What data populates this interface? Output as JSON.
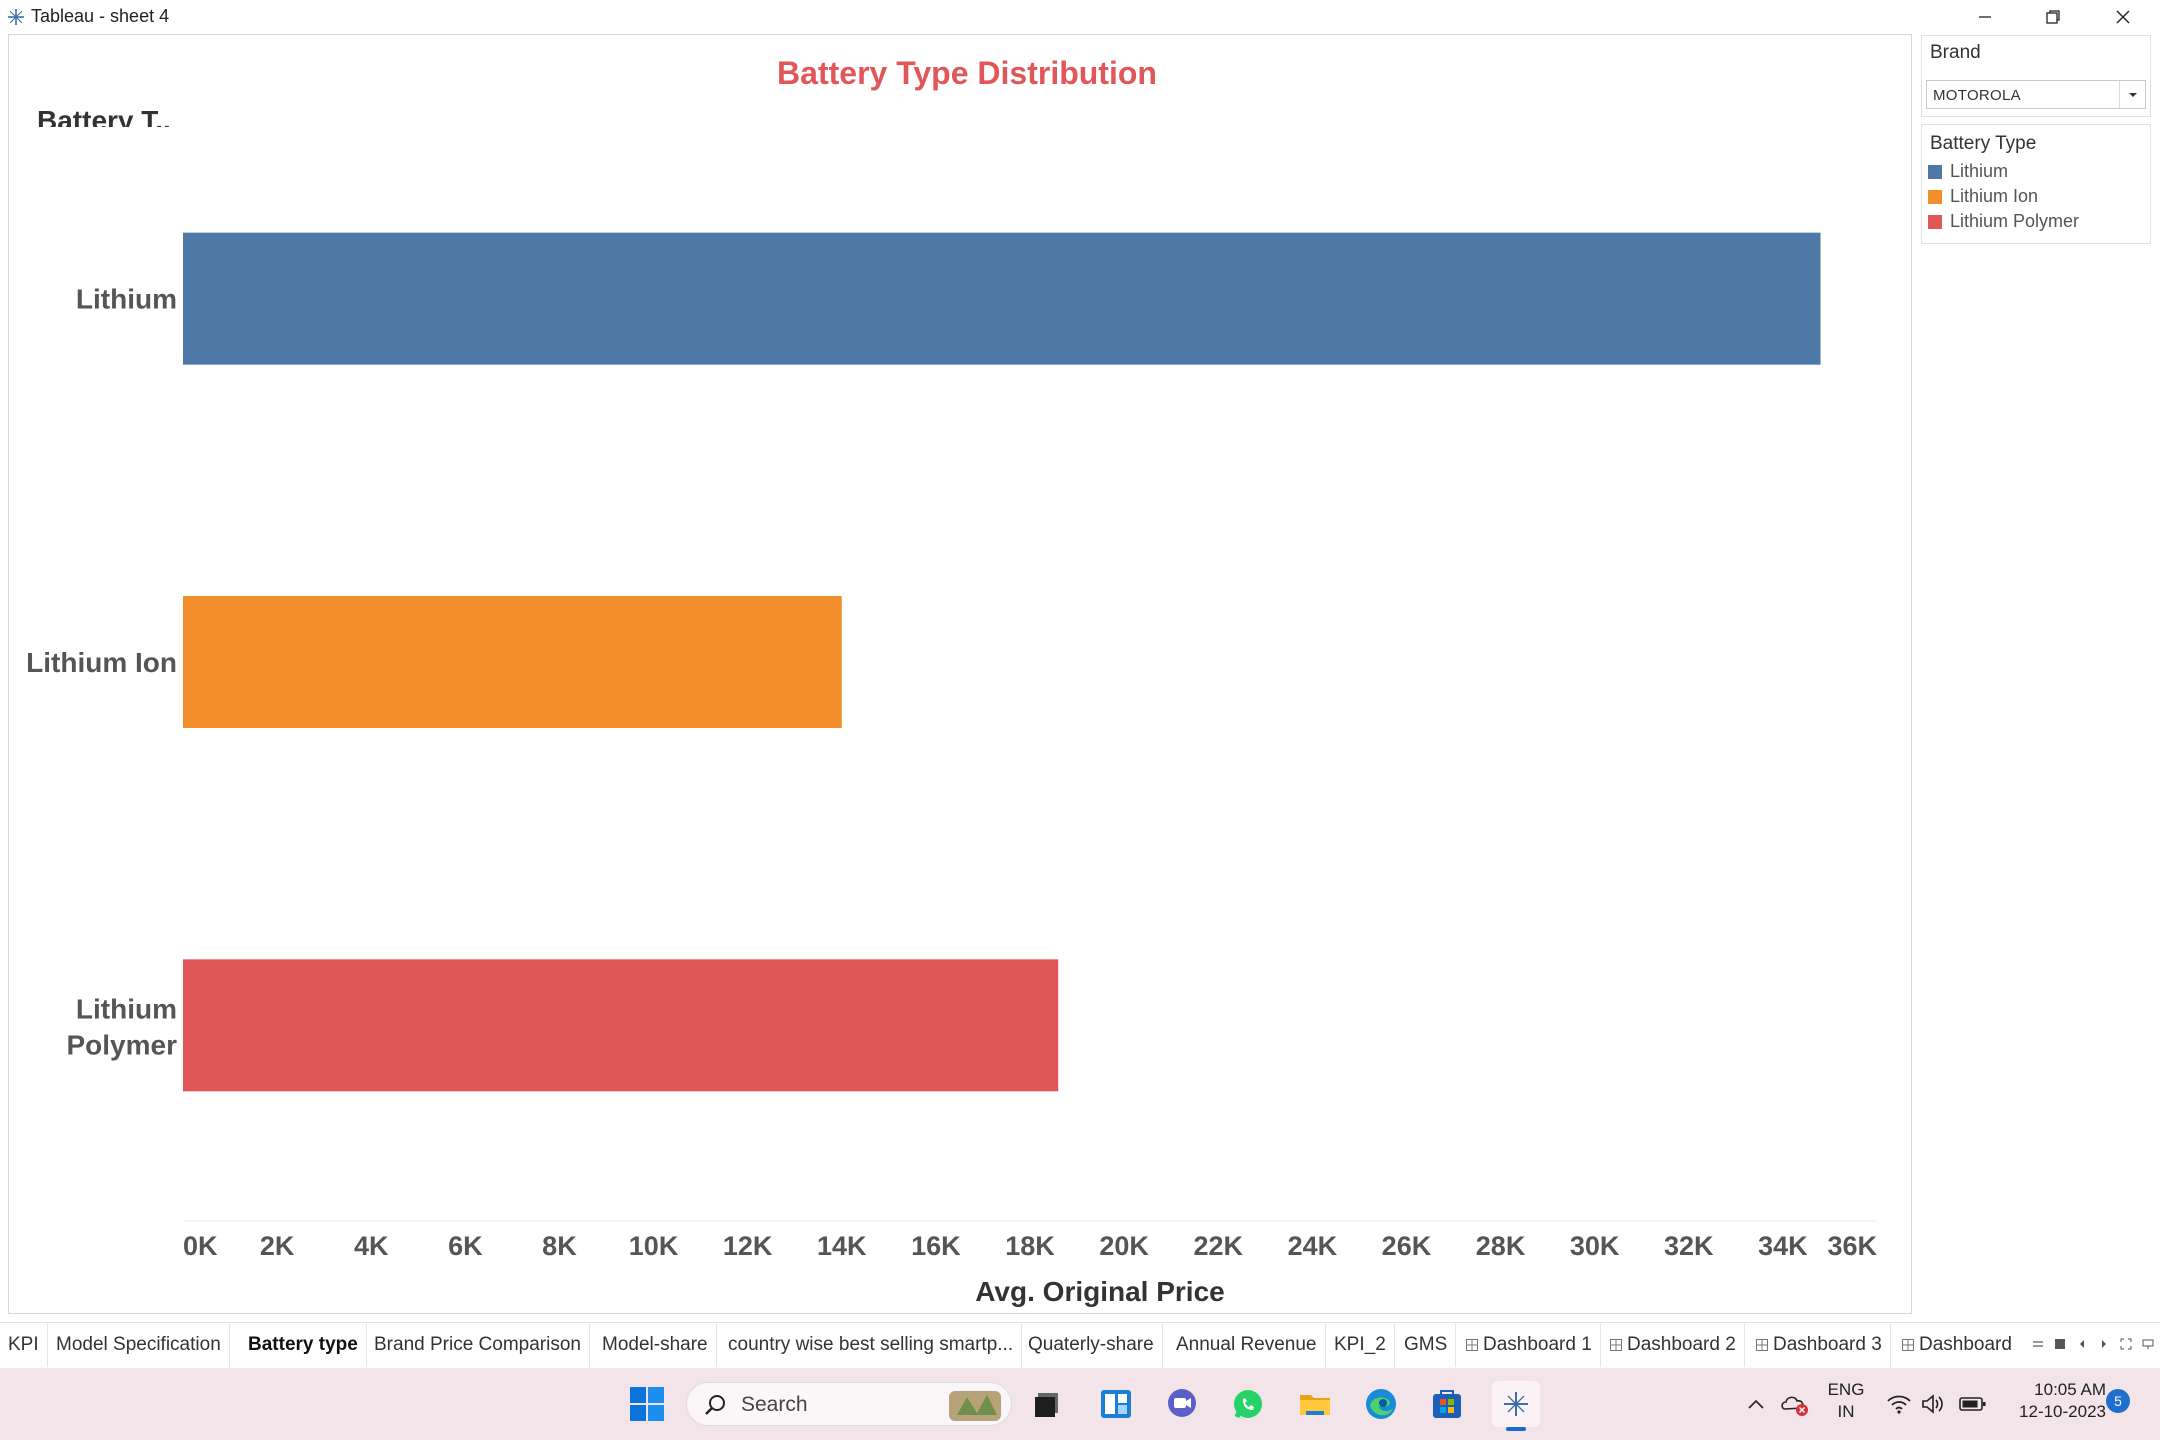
{
  "window": {
    "title": "Tableau - sheet 4"
  },
  "sheet": {
    "axis_header": "Battery T.."
  },
  "chart_data": {
    "type": "bar",
    "orientation": "horizontal",
    "title": "Battery Type Distribution",
    "xlabel": "Avg. Original Price",
    "ylabel": "Battery T..",
    "categories": [
      "Lithium",
      "Lithium Ion",
      "Lithium Polymer"
    ],
    "values": [
      34800,
      14000,
      18600
    ],
    "colors": [
      "#4e79a7",
      "#f28e2b",
      "#e15759"
    ],
    "xlim": [
      0,
      36000
    ],
    "xticks": [
      0,
      2000,
      4000,
      6000,
      8000,
      10000,
      12000,
      14000,
      16000,
      18000,
      20000,
      22000,
      24000,
      26000,
      28000,
      30000,
      32000,
      34000,
      36000
    ],
    "xtick_labels": [
      "0K",
      "2K",
      "4K",
      "6K",
      "8K",
      "10K",
      "12K",
      "14K",
      "16K",
      "18K",
      "20K",
      "22K",
      "24K",
      "26K",
      "28K",
      "30K",
      "32K",
      "34K",
      "36K"
    ],
    "grid": false,
    "legend": "right"
  },
  "filters": {
    "brand": {
      "title": "Brand",
      "value": "MOTOROLA"
    }
  },
  "legend": {
    "title": "Battery Type",
    "items": [
      {
        "label": "Lithium",
        "color": "#4e79a7"
      },
      {
        "label": "Lithium Ion",
        "color": "#f28e2b"
      },
      {
        "label": "Lithium Polymer",
        "color": "#e15759"
      }
    ]
  },
  "tabs": [
    {
      "label": "KPI",
      "dashboard": false
    },
    {
      "label": "Model Specification",
      "dashboard": false
    },
    {
      "label": "Battery type",
      "dashboard": false,
      "active": true
    },
    {
      "label": "Brand Price Comparison",
      "dashboard": false
    },
    {
      "label": "Model-share",
      "dashboard": false
    },
    {
      "label": "country wise best selling smartp...",
      "dashboard": false
    },
    {
      "label": "Quaterly-share",
      "dashboard": false
    },
    {
      "label": "Annual Revenue",
      "dashboard": false
    },
    {
      "label": "KPI_2",
      "dashboard": false
    },
    {
      "label": "GMS",
      "dashboard": false
    },
    {
      "label": "Dashboard 1",
      "dashboard": true
    },
    {
      "label": "Dashboard 2",
      "dashboard": true
    },
    {
      "label": "Dashboard 3",
      "dashboard": true
    },
    {
      "label": "Dashboard",
      "dashboard": true
    }
  ],
  "taskbar": {
    "search_label": "Search",
    "lang_line1": "ENG",
    "lang_line2": "IN",
    "time": "10:05 AM",
    "date": "12-10-2023",
    "notification_count": "5",
    "icons": [
      "windows-start-icon",
      "search-icon",
      "task-view-icon",
      "widgets-icon",
      "teams-chat-icon",
      "whatsapp-icon",
      "file-explorer-icon",
      "edge-icon",
      "microsoft-store-icon",
      "tableau-icon"
    ]
  }
}
